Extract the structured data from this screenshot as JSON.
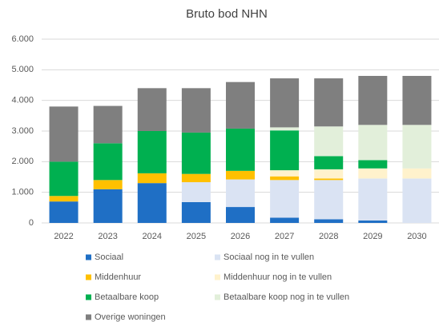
{
  "chart_data": {
    "type": "stacked_bar",
    "title": "Bruto bod NHN",
    "categories": [
      "2022",
      "2023",
      "2024",
      "2025",
      "2026",
      "2027",
      "2028",
      "2029",
      "2030"
    ],
    "series": [
      {
        "name": "Sociaal",
        "color": "#1f6fc5",
        "values": [
          700,
          1100,
          1300,
          680,
          520,
          170,
          120,
          80,
          0
        ]
      },
      {
        "name": "Sociaal nog in te vullen",
        "color": "#dae3f3",
        "values": [
          0,
          0,
          0,
          650,
          900,
          1230,
          1280,
          1370,
          1450
        ]
      },
      {
        "name": "Middenhuur",
        "color": "#ffc000",
        "values": [
          180,
          300,
          320,
          270,
          280,
          120,
          50,
          0,
          0
        ]
      },
      {
        "name": "Middenhuur nog in te vullen",
        "color": "#fff2cc",
        "values": [
          0,
          0,
          0,
          0,
          0,
          200,
          300,
          330,
          330
        ]
      },
      {
        "name": "Betaalbare koop",
        "color": "#00b050",
        "values": [
          1120,
          1200,
          1380,
          1350,
          1380,
          1300,
          430,
          270,
          0
        ]
      },
      {
        "name": "Betaalbare koop nog in te vullen",
        "color": "#e2efda",
        "values": [
          0,
          0,
          0,
          0,
          0,
          100,
          970,
          1150,
          1420
        ]
      },
      {
        "name": "Overige woningen",
        "color": "#7f7f7f",
        "values": [
          1800,
          1220,
          1400,
          1450,
          1520,
          1600,
          1570,
          1600,
          1600
        ]
      }
    ],
    "ylim": [
      0,
      6000
    ],
    "yticks": [
      0,
      {
        "value": 1000,
        "label": "1.000"
      },
      {
        "value": 2000,
        "label": "2.000"
      },
      {
        "value": 3000,
        "label": "3.000"
      },
      {
        "value": 4000,
        "label": "4.000"
      },
      {
        "value": 5000,
        "label": "5.000"
      },
      {
        "value": 6000,
        "label": "6.000"
      }
    ],
    "grid": true,
    "legend": "bottom"
  }
}
